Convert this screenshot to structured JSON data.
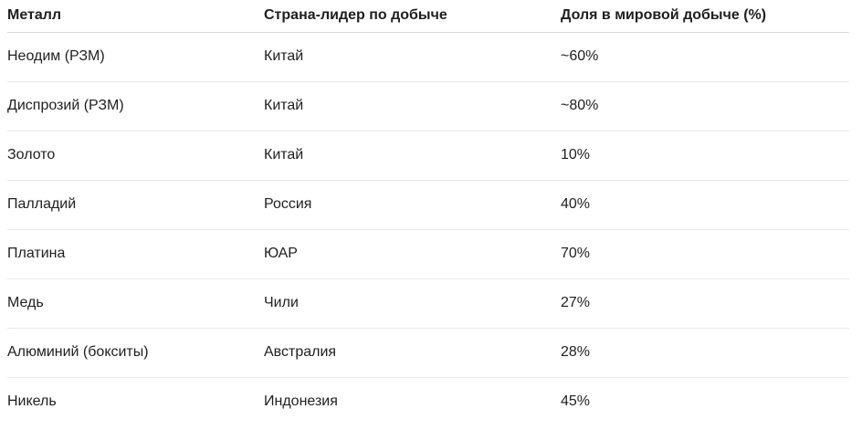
{
  "table": {
    "headers": [
      "Металл",
      "Страна-лидер по добыче",
      "Доля в мировой добыче (%)"
    ],
    "rows": [
      [
        "Неодим (РЗМ)",
        "Китай",
        "~60%"
      ],
      [
        "Диспрозий (РЗМ)",
        "Китай",
        "~80%"
      ],
      [
        "Золото",
        "Китай",
        "10%"
      ],
      [
        "Палладий",
        "Россия",
        "40%"
      ],
      [
        "Платина",
        "ЮАР",
        "70%"
      ],
      [
        "Медь",
        "Чили",
        "27%"
      ],
      [
        "Алюминий (бокситы)",
        "Австралия",
        "28%"
      ],
      [
        "Никель",
        "Индонезия",
        "45%"
      ]
    ]
  }
}
